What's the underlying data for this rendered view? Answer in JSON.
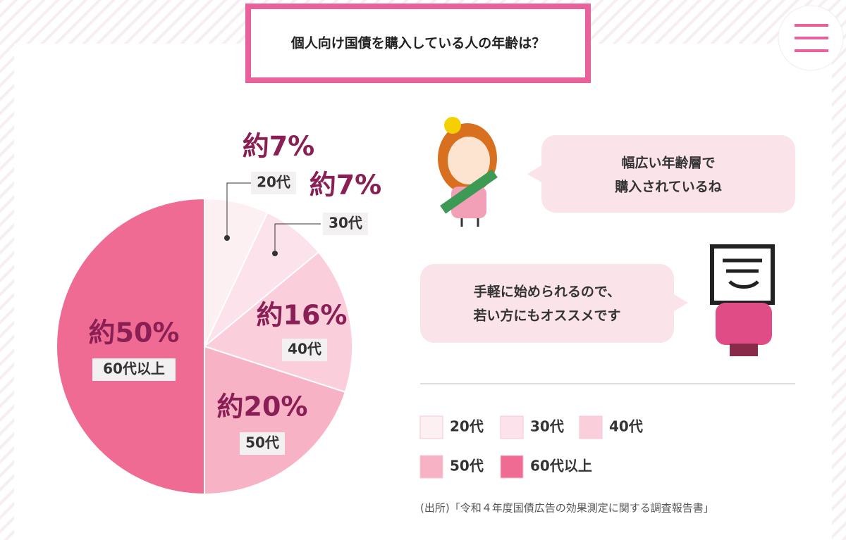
{
  "header": {
    "title": "個人向け国債を購入している人の年齢は？"
  },
  "chart_data": {
    "type": "pie",
    "categories": [
      "20代",
      "30代",
      "40代",
      "50代",
      "60代以上"
    ],
    "values": [
      7,
      7,
      16,
      20,
      50
    ],
    "value_labels": [
      "約7%",
      "約7%",
      "約16%",
      "約20%",
      "約50%"
    ],
    "colors": [
      "#fdf0f3",
      "#fce2ea",
      "#fbcedb",
      "#f8b2c6",
      "#f06b93"
    ]
  },
  "bubbles": [
    {
      "lines": [
        "幅広い年齢層で",
        "購入されているね"
      ]
    },
    {
      "lines": [
        "手軽に始められるので、",
        "若い方にもオススメです"
      ]
    }
  ],
  "source": "(出所)「令和４年度国債広告の効果測定に関する調査報告書」"
}
